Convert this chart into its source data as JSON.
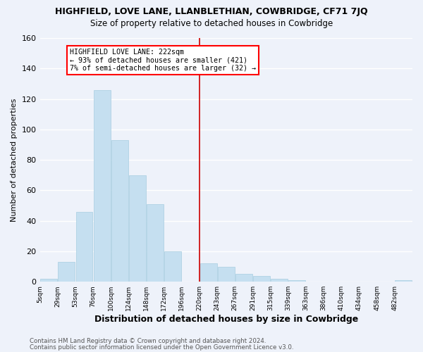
{
  "title": "HIGHFIELD, LOVE LANE, LLANBLETHIAN, COWBRIDGE, CF71 7JQ",
  "subtitle": "Size of property relative to detached houses in Cowbridge",
  "xlabel": "Distribution of detached houses by size in Cowbridge",
  "ylabel": "Number of detached properties",
  "bar_color": "#c5dff0",
  "bar_edge_color": "#a8cde0",
  "bin_labels": [
    "5sqm",
    "29sqm",
    "53sqm",
    "76sqm",
    "100sqm",
    "124sqm",
    "148sqm",
    "172sqm",
    "196sqm",
    "220sqm",
    "243sqm",
    "267sqm",
    "291sqm",
    "315sqm",
    "339sqm",
    "363sqm",
    "386sqm",
    "410sqm",
    "434sqm",
    "458sqm",
    "482sqm"
  ],
  "bar_heights": [
    2,
    13,
    46,
    126,
    93,
    70,
    51,
    20,
    0,
    12,
    10,
    5,
    4,
    2,
    1,
    0,
    0,
    0,
    0,
    0,
    1
  ],
  "ylim": [
    0,
    160
  ],
  "yticks": [
    0,
    20,
    40,
    60,
    80,
    100,
    120,
    140,
    160
  ],
  "annotation_title": "HIGHFIELD LOVE LANE: 222sqm",
  "annotation_line1": "← 93% of detached houses are smaller (421)",
  "annotation_line2": "7% of semi-detached houses are larger (32) →",
  "vline_bin": 9,
  "footer1": "Contains HM Land Registry data © Crown copyright and database right 2024.",
  "footer2": "Contains public sector information licensed under the Open Government Licence v3.0.",
  "background_color": "#eef2fa",
  "grid_color": "#ffffff",
  "vline_color": "#cc0000"
}
